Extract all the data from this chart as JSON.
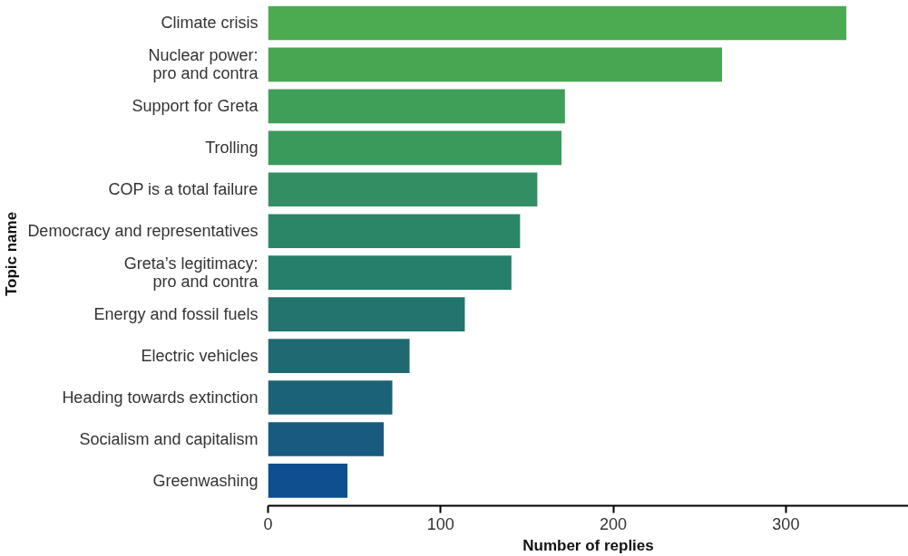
{
  "chart_data": {
    "type": "bar",
    "orientation": "horizontal",
    "xlabel": "Number of replies",
    "ylabel": "Topic name",
    "categories": [
      "Climate crisis",
      "Nuclear power:\npro and contra",
      "Support for Greta",
      "Trolling",
      "COP is a total failure",
      "Democracy and representatives",
      "Greta’s legitimacy:\npro and contra",
      "Energy and fossil fuels",
      "Electric vehicles",
      "Heading towards extinction",
      "Socialism and capitalism",
      "Greenwashing"
    ],
    "values": [
      335,
      263,
      172,
      170,
      156,
      146,
      141,
      114,
      82,
      72,
      67,
      46
    ],
    "colors": [
      "#4caa50",
      "#48a653",
      "#3f9f58",
      "#3a9a5c",
      "#338f63",
      "#2a8667",
      "#267f6b",
      "#23746e",
      "#1f6a72",
      "#1c6276",
      "#185a80",
      "#0f4f8f"
    ],
    "xlim": [
      0,
      371
    ],
    "xticks": [
      0,
      100,
      200,
      300
    ],
    "grid": false
  }
}
